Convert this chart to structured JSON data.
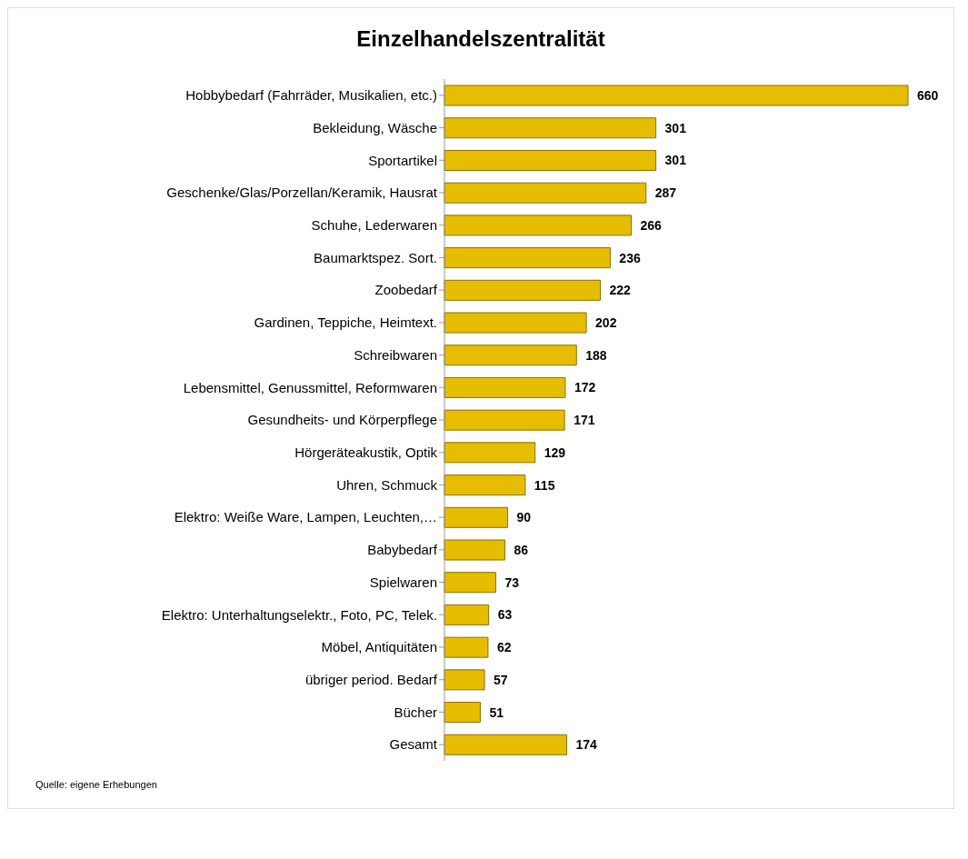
{
  "chart_data": {
    "type": "bar",
    "orientation": "horizontal",
    "title": "Einzelhandelszentralität",
    "categories": [
      "Hobbybedarf (Fahrräder, Musikalien, etc.)",
      "Bekleidung, Wäsche",
      "Sportartikel",
      "Geschenke/Glas/Porzellan/Keramik, Hausrat",
      "Schuhe, Lederwaren",
      "Baumarktspez. Sort.",
      "Zoobedarf",
      "Gardinen, Teppiche, Heimtext.",
      "Schreibwaren",
      "Lebensmittel, Genussmittel, Reformwaren",
      "Gesundheits- und Körperpflege",
      "Hörgeräteakustik, Optik",
      "Uhren, Schmuck",
      "Elektro: Weiße Ware, Lampen, Leuchten,…",
      "Babybedarf",
      "Spielwaren",
      "Elektro: Unterhaltungselektr., Foto, PC, Telek.",
      "Möbel, Antiquitäten",
      "übriger period. Bedarf",
      "Bücher",
      "Gesamt"
    ],
    "values": [
      660,
      301,
      301,
      287,
      266,
      236,
      222,
      202,
      188,
      172,
      171,
      129,
      115,
      90,
      86,
      73,
      63,
      62,
      57,
      51,
      174
    ],
    "color": "#e6bd00",
    "data_labels": true,
    "tick_labels": "y",
    "annotations": [
      "Quelle: eigene Erhebungen"
    ]
  }
}
